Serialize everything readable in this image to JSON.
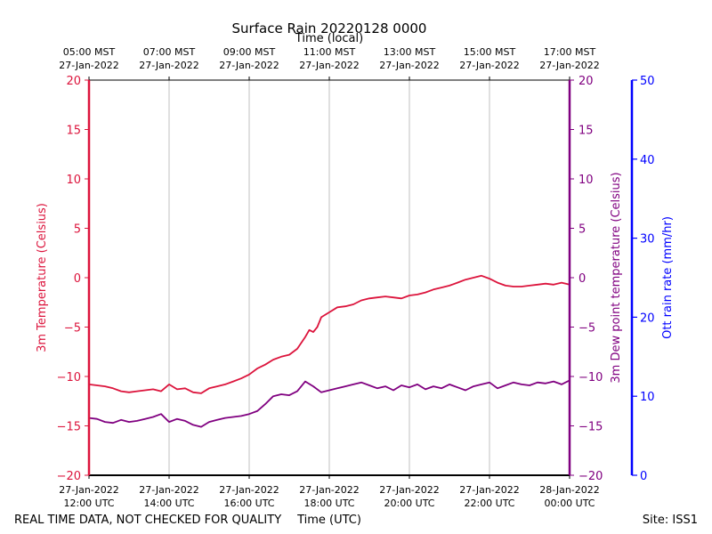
{
  "chart_data": {
    "type": "line",
    "title": "Surface Rain 20220128 0000",
    "top_axis_label": "Time (local)",
    "bottom_axis_label": "Time (UTC)",
    "footer_left": "REAL TIME DATA, NOT CHECKED FOR QUALITY",
    "footer_right": "Site: ISS1",
    "x_range_hours_utc": [
      12,
      24
    ],
    "bottom_ticks": [
      {
        "hour": 12,
        "line1": "27-Jan-2022",
        "line2": "12:00 UTC"
      },
      {
        "hour": 14,
        "line1": "27-Jan-2022",
        "line2": "14:00 UTC"
      },
      {
        "hour": 16,
        "line1": "27-Jan-2022",
        "line2": "16:00 UTC"
      },
      {
        "hour": 18,
        "line1": "27-Jan-2022",
        "line2": "18:00 UTC"
      },
      {
        "hour": 20,
        "line1": "27-Jan-2022",
        "line2": "20:00 UTC"
      },
      {
        "hour": 22,
        "line1": "27-Jan-2022",
        "line2": "22:00 UTC"
      },
      {
        "hour": 24,
        "line1": "28-Jan-2022",
        "line2": "00:00 UTC"
      }
    ],
    "top_ticks": [
      {
        "hour": 12,
        "line1": "05:00 MST",
        "line2": "27-Jan-2022"
      },
      {
        "hour": 14,
        "line1": "07:00 MST",
        "line2": "27-Jan-2022"
      },
      {
        "hour": 16,
        "line1": "09:00 MST",
        "line2": "27-Jan-2022"
      },
      {
        "hour": 18,
        "line1": "11:00 MST",
        "line2": "27-Jan-2022"
      },
      {
        "hour": 20,
        "line1": "13:00 MST",
        "line2": "27-Jan-2022"
      },
      {
        "hour": 22,
        "line1": "15:00 MST",
        "line2": "27-Jan-2022"
      },
      {
        "hour": 24,
        "line1": "17:00 MST",
        "line2": "27-Jan-2022"
      }
    ],
    "axes": {
      "temperature": {
        "label": "3m Temperature (Celsius)",
        "ylim": [
          -20,
          20
        ],
        "ticks": [
          20,
          15,
          10,
          5,
          0,
          -5,
          -10,
          -15,
          -20
        ],
        "tick_labels": [
          "20",
          "15",
          "10",
          "5",
          "0",
          "−5",
          "−10",
          "−15",
          "−20"
        ],
        "color": "#dc143c"
      },
      "dewpoint": {
        "label": "3m Dew point temperature (Celsius)",
        "ylim": [
          -20,
          20
        ],
        "ticks": [
          20,
          15,
          10,
          5,
          0,
          -5,
          -10,
          -15,
          -20
        ],
        "tick_labels": [
          "20",
          "15",
          "10",
          "5",
          "0",
          "−5",
          "−10",
          "−15",
          "−20"
        ],
        "color": "#800080"
      },
      "rain": {
        "label": "Ott rain rate (mm/hr)",
        "ylim": [
          0,
          50
        ],
        "ticks": [
          50,
          40,
          30,
          20,
          10,
          0
        ],
        "tick_labels": [
          "50",
          "40",
          "30",
          "20",
          "10",
          "0"
        ],
        "color": "#0000ff"
      }
    },
    "series": [
      {
        "name": "3m Temperature",
        "axis": "temperature",
        "color": "#dc143c",
        "x": [
          12.0,
          12.2,
          12.4,
          12.6,
          12.8,
          13.0,
          13.2,
          13.4,
          13.6,
          13.8,
          14.0,
          14.2,
          14.4,
          14.6,
          14.8,
          15.0,
          15.2,
          15.4,
          15.6,
          15.8,
          16.0,
          16.2,
          16.4,
          16.6,
          16.8,
          17.0,
          17.2,
          17.4,
          17.5,
          17.6,
          17.7,
          17.8,
          18.0,
          18.2,
          18.4,
          18.6,
          18.8,
          19.0,
          19.2,
          19.4,
          19.6,
          19.8,
          20.0,
          20.2,
          20.4,
          20.6,
          20.8,
          21.0,
          21.2,
          21.4,
          21.6,
          21.8,
          22.0,
          22.2,
          22.4,
          22.6,
          22.8,
          23.0,
          23.2,
          23.4,
          23.6,
          23.8,
          24.0
        ],
        "values": [
          -10.8,
          -10.9,
          -11.0,
          -11.2,
          -11.5,
          -11.6,
          -11.5,
          -11.4,
          -11.3,
          -11.5,
          -10.8,
          -11.3,
          -11.2,
          -11.6,
          -11.7,
          -11.2,
          -11.0,
          -10.8,
          -10.5,
          -10.2,
          -9.8,
          -9.2,
          -8.8,
          -8.3,
          -8.0,
          -7.8,
          -7.2,
          -6.0,
          -5.3,
          -5.5,
          -5.0,
          -4.0,
          -3.5,
          -3.0,
          -2.9,
          -2.7,
          -2.3,
          -2.1,
          -2.0,
          -1.9,
          -2.0,
          -2.1,
          -1.8,
          -1.7,
          -1.5,
          -1.2,
          -1.0,
          -0.8,
          -0.5,
          -0.2,
          0.0,
          0.2,
          -0.1,
          -0.5,
          -0.8,
          -0.9,
          -0.9,
          -0.8,
          -0.7,
          -0.6,
          -0.7,
          -0.5,
          -0.7
        ]
      },
      {
        "name": "3m Dew point temperature",
        "axis": "dewpoint",
        "color": "#800080",
        "x": [
          12.0,
          12.2,
          12.4,
          12.6,
          12.8,
          13.0,
          13.2,
          13.4,
          13.6,
          13.8,
          14.0,
          14.2,
          14.4,
          14.6,
          14.8,
          15.0,
          15.2,
          15.4,
          15.6,
          15.8,
          16.0,
          16.2,
          16.4,
          16.6,
          16.8,
          17.0,
          17.2,
          17.4,
          17.6,
          17.8,
          18.0,
          18.2,
          18.4,
          18.6,
          18.8,
          19.0,
          19.2,
          19.4,
          19.6,
          19.8,
          20.0,
          20.2,
          20.4,
          20.6,
          20.8,
          21.0,
          21.2,
          21.4,
          21.6,
          21.8,
          22.0,
          22.2,
          22.4,
          22.6,
          22.8,
          23.0,
          23.2,
          23.4,
          23.6,
          23.8,
          24.0
        ],
        "values": [
          -14.2,
          -14.3,
          -14.6,
          -14.7,
          -14.4,
          -14.6,
          -14.5,
          -14.3,
          -14.1,
          -13.8,
          -14.6,
          -14.3,
          -14.5,
          -14.9,
          -15.1,
          -14.6,
          -14.4,
          -14.2,
          -14.1,
          -14.0,
          -13.8,
          -13.5,
          -12.8,
          -12.0,
          -11.8,
          -11.9,
          -11.5,
          -10.5,
          -11.0,
          -11.6,
          -11.4,
          -11.2,
          -11.0,
          -10.8,
          -10.6,
          -10.9,
          -11.2,
          -11.0,
          -11.4,
          -10.9,
          -11.1,
          -10.8,
          -11.3,
          -11.0,
          -11.2,
          -10.8,
          -11.1,
          -11.4,
          -11.0,
          -10.8,
          -10.6,
          -11.2,
          -10.9,
          -10.6,
          -10.8,
          -10.9,
          -10.6,
          -10.7,
          -10.5,
          -10.8,
          -10.4
        ]
      }
    ]
  }
}
